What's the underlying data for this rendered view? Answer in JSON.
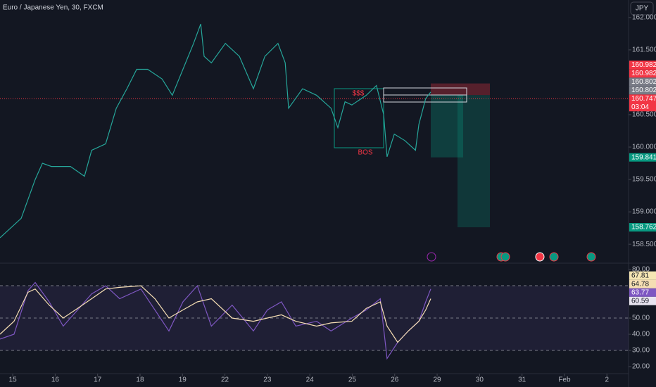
{
  "toolbar": {
    "currency": "JPY"
  },
  "chart_data": [
    {
      "type": "line",
      "title": "Euro / Japanese Yen, 30, FXCM",
      "xlim": [
        -0.3,
        14.51
      ],
      "xticks": [
        {
          "value": 0,
          "label": "15"
        },
        {
          "value": 1,
          "label": "16"
        },
        {
          "value": 2,
          "label": "17"
        },
        {
          "value": 3,
          "label": "18"
        },
        {
          "value": 4,
          "label": "19"
        },
        {
          "value": 5,
          "label": "22"
        },
        {
          "value": 6,
          "label": "23"
        },
        {
          "value": 7,
          "label": "24"
        },
        {
          "value": 8,
          "label": "25"
        },
        {
          "value": 9,
          "label": "26"
        },
        {
          "value": 10,
          "label": "29"
        },
        {
          "value": 11,
          "label": "30"
        },
        {
          "value": 12,
          "label": "31"
        },
        {
          "value": 13,
          "label": "Feb"
        },
        {
          "value": 14,
          "label": "2"
        }
      ],
      "ylim": [
        158.23,
        162.27
      ],
      "yticks": [
        {
          "value": 162,
          "label": "162.000"
        },
        {
          "value": 161.5,
          "label": "161.500"
        },
        {
          "value": 160.5,
          "label": "160.500"
        },
        {
          "value": 160,
          "label": "160.000"
        },
        {
          "value": 159.5,
          "label": "159.500"
        },
        {
          "value": 159,
          "label": "159.000"
        },
        {
          "value": 158.5,
          "label": "158.500"
        }
      ],
      "x": [
        -0.3,
        0.2,
        0.53,
        0.7,
        0.91,
        1.36,
        1.69,
        1.86,
        2.19,
        2.44,
        2.69,
        2.92,
        3.18,
        3.52,
        3.76,
        4.01,
        4.26,
        4.43,
        4.51,
        4.68,
        5.01,
        5.34,
        5.67,
        5.94,
        6.25,
        6.42,
        6.5,
        6.83,
        7.16,
        7.5,
        7.66,
        7.83,
        7.99,
        8.33,
        8.57,
        8.74,
        8.82,
        8.99,
        9.24,
        9.49,
        9.57,
        9.73,
        9.85
      ],
      "series": [
        {
          "name": "EURJPY",
          "color": "#26a69a",
          "values": [
            158.6,
            158.9,
            159.5,
            159.75,
            159.7,
            159.7,
            159.55,
            159.95,
            160.05,
            160.6,
            160.9,
            161.2,
            161.2,
            161.05,
            160.8,
            161.2,
            161.6,
            161.9,
            161.4,
            161.3,
            161.6,
            161.4,
            160.9,
            161.4,
            161.6,
            161.3,
            160.6,
            160.9,
            160.8,
            160.6,
            160.3,
            160.7,
            160.65,
            160.8,
            160.95,
            160.5,
            159.85,
            160.2,
            160.1,
            159.95,
            160.35,
            160.75,
            160.85
          ]
        }
      ],
      "price_labels": [
        {
          "value": 160.982,
          "color": "#f23645"
        },
        {
          "value": 160.982,
          "color": "#f23645"
        },
        {
          "value": 160.802,
          "color": "#787b86"
        },
        {
          "value": 160.802,
          "color": "#787b86"
        },
        {
          "value": 160.747,
          "color": "#f23645",
          "countdown": "03:04"
        },
        {
          "value": 159.841,
          "color": "#089981"
        },
        {
          "value": 158.762,
          "color": "#089981"
        }
      ],
      "annotations": [
        "$$$",
        "BOS"
      ]
    },
    {
      "type": "line",
      "ylim": [
        16.1,
        82.2
      ],
      "yticks": [
        {
          "value": 80,
          "label": "80.00"
        },
        {
          "value": 50,
          "label": "50.00"
        },
        {
          "value": 40,
          "label": "40.00"
        },
        {
          "value": 30,
          "label": "30.00"
        },
        {
          "value": 20,
          "label": "20.00"
        }
      ],
      "levels": [
        70,
        50,
        30
      ],
      "x": [
        -0.3,
        0.03,
        0.36,
        0.53,
        0.86,
        1.19,
        1.53,
        1.86,
        2.19,
        2.52,
        3.02,
        3.35,
        3.68,
        4.01,
        4.35,
        4.68,
        5.17,
        5.67,
        6.0,
        6.33,
        6.67,
        7.16,
        7.5,
        7.99,
        8.33,
        8.66,
        8.82,
        9.07,
        9.32,
        9.57,
        9.73,
        9.85
      ],
      "series": [
        {
          "name": "RSI",
          "color": "#7e57c2",
          "values": [
            37,
            40,
            67,
            72,
            60,
            45,
            55,
            65,
            70,
            62,
            68,
            55,
            42,
            60,
            70,
            45,
            58,
            42,
            55,
            60,
            45,
            48,
            42,
            50,
            55,
            62,
            25,
            35,
            42,
            48,
            60,
            68
          ]
        },
        {
          "name": "RSI MA",
          "color": "#f5deb3",
          "values": [
            40,
            48,
            66,
            68,
            58,
            50,
            56,
            62,
            68,
            69,
            70,
            62,
            50,
            55,
            60,
            62,
            50,
            48,
            50,
            52,
            48,
            45,
            47,
            48,
            56,
            60,
            45,
            35,
            42,
            48,
            55,
            62
          ]
        }
      ],
      "value_labels": [
        {
          "value": 67.81,
          "color": "#f5e6b3"
        },
        {
          "value": 64.78,
          "color": "#f5deb3"
        },
        {
          "value": 63.77,
          "color": "#7e57c2"
        },
        {
          "value": 60.59,
          "color": "#e8e4f0"
        }
      ]
    }
  ]
}
